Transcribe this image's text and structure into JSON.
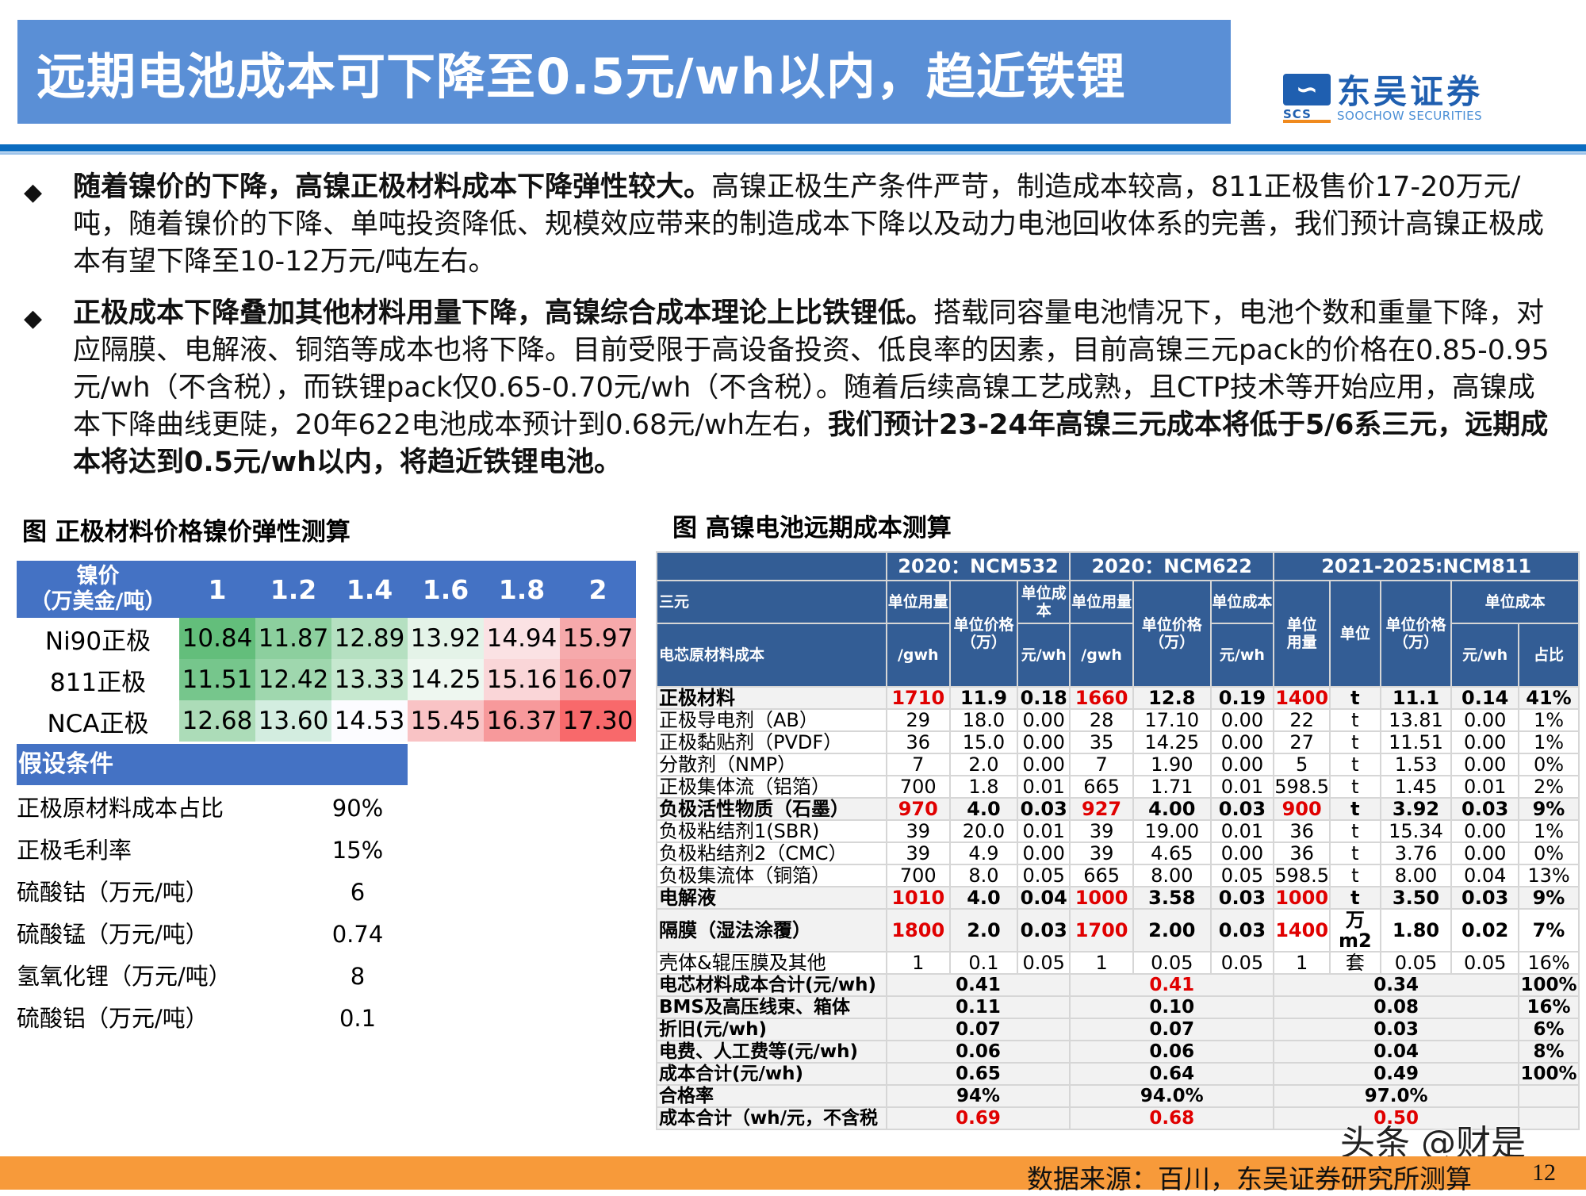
{
  "header": {
    "title": "远期电池成本可下降至0.5元/wh以内，趋近铁锂",
    "logo": {
      "mark": "SCS",
      "name_cn": "东吴证券",
      "name_en": "SOOCHOW SECURITIES"
    }
  },
  "bullets": [
    {
      "bold": "随着镍价的下降，高镍正极材料成本下降弹性较大。",
      "text": "高镍正极生产条件严苛，制造成本较高，811正极售价17-20万元/吨，随着镍价的下降、单吨投资降低、规模效应带来的制造成本下降以及动力电池回收体系的完善，我们预计高镍正极成本有望下降至10-12万元/吨左右。"
    },
    {
      "bold": "正极成本下降叠加其他材料用量下降，高镍综合成本理论上比铁锂低。",
      "text": "搭载同容量电池情况下，电池个数和重量下降，对应隔膜、电解液、铜箔等成本也将下降。目前受限于高设备投资、低良率的因素，目前高镍三元pack的价格在0.85-0.95元/wh（不含税），而铁锂pack仅0.65-0.70元/wh（不含税）。随着后续高镍工艺成熟，且CTP技术等开始应用，高镍成本下降曲线更陡，20年622电池成本预计到0.68元/wh左右，",
      "bold_tail": "我们预计23-24年高镍三元成本将低于5/6系三元，远期成本将达到0.5元/wh以内，将趋近铁锂电池。"
    }
  ],
  "left_figure": {
    "title": "图 正极材料价格镍价弹性测算",
    "header_label": "镍价（万美金/吨）",
    "header_label_l1": "镍价",
    "header_label_l2": "（万美金/吨）",
    "nickel_prices": [
      "1",
      "1.2",
      "1.4",
      "1.6",
      "1.8",
      "2"
    ],
    "rows": [
      {
        "label": "Ni90正极",
        "values": [
          "10.84",
          "11.87",
          "12.89",
          "13.92",
          "14.94",
          "15.97"
        ],
        "colors": [
          "#63be7b",
          "#8ccf9e",
          "#b5e0c1",
          "#e4f3e8",
          "#fbe2e4",
          "#f6a9ab"
        ]
      },
      {
        "label": "811正极",
        "values": [
          "11.51",
          "12.42",
          "13.33",
          "14.25",
          "15.16",
          "16.07"
        ],
        "colors": [
          "#76c68c",
          "#9fd7ae",
          "#c6e8cf",
          "#eef7f0",
          "#fad6d8",
          "#f59fa1"
        ]
      },
      {
        "label": "NCA正极",
        "values": [
          "12.68",
          "13.60",
          "14.53",
          "15.45",
          "16.37",
          "17.30"
        ],
        "colors": [
          "#acdcb8",
          "#d3ede0",
          "#fcfcff",
          "#f9c3c5",
          "#f7999b",
          "#f8696b"
        ]
      }
    ],
    "assumptions_title": "假设条件",
    "assumptions": [
      {
        "label": "正极原材料成本占比",
        "value": "90%"
      },
      {
        "label": "正极毛利率",
        "value": "15%"
      },
      {
        "label": "硫酸钴（万元/吨）",
        "value": "6"
      },
      {
        "label": "硫酸锰（万元/吨）",
        "value": "0.74"
      },
      {
        "label": "氢氧化锂（万元/吨）",
        "value": "8"
      },
      {
        "label": "硫酸铝（万元/吨）",
        "value": "0.1"
      }
    ]
  },
  "right_figure": {
    "title": "图 高镍电池远期成本测算",
    "groups": [
      "2020：NCM532",
      "2020：NCM622",
      "2021-2025:NCM811"
    ],
    "row_label_1": "三元",
    "row_label_2": "电芯原材料成本",
    "col_headers": {
      "unit_usage": "单位用量",
      "unit_price": "单位价格（万）",
      "unit_price_l1": "单位价格",
      "unit_price_l2": "（万）",
      "unit_cost": "单位成本",
      "unit_cost_532_l1": "单位成",
      "unit_cost_532_l2": "本",
      "per_gwh": "/gwh",
      "yuan_wh": "元/wh",
      "unit_usage_l1": "单位",
      "unit_usage_l2": "用量",
      "unit": "单位",
      "share": "占比"
    },
    "rows": [
      {
        "name": "正极材料",
        "bold": true,
        "v": [
          "1710",
          "11.9",
          "0.18",
          "1660",
          "12.8",
          "0.19",
          "1400",
          "t",
          "11.1",
          "0.14",
          "41%"
        ]
      },
      {
        "name": "正极导电剂（AB）",
        "bold": false,
        "v": [
          "29",
          "18.0",
          "0.00",
          "28",
          "17.10",
          "0.00",
          "22",
          "t",
          "13.81",
          "0.00",
          "1%"
        ]
      },
      {
        "name": "正极黏贴剂（PVDF）",
        "bold": false,
        "v": [
          "36",
          "15.0",
          "0.00",
          "35",
          "14.25",
          "0.00",
          "27",
          "t",
          "11.51",
          "0.00",
          "1%"
        ]
      },
      {
        "name": "分散剂（NMP）",
        "bold": false,
        "v": [
          "7",
          "2.0",
          "0.00",
          "7",
          "1.90",
          "0.00",
          "5",
          "t",
          "1.53",
          "0.00",
          "0%"
        ]
      },
      {
        "name": "正极集体流（铝箔）",
        "bold": false,
        "v": [
          "700",
          "1.8",
          "0.01",
          "665",
          "1.71",
          "0.01",
          "598.5",
          "t",
          "1.45",
          "0.01",
          "2%"
        ]
      },
      {
        "name": "负极活性物质（石墨）",
        "bold": true,
        "v": [
          "970",
          "4.0",
          "0.03",
          "927",
          "4.00",
          "0.03",
          "900",
          "t",
          "3.92",
          "0.03",
          "9%"
        ]
      },
      {
        "name": "负极粘结剂1(SBR)",
        "bold": false,
        "v": [
          "39",
          "20.0",
          "0.01",
          "39",
          "19.00",
          "0.01",
          "36",
          "t",
          "15.34",
          "0.00",
          "1%"
        ]
      },
      {
        "name": "负极粘结剂2（CMC）",
        "bold": false,
        "v": [
          "39",
          "4.9",
          "0.00",
          "39",
          "4.65",
          "0.00",
          "36",
          "t",
          "3.76",
          "0.00",
          "0%"
        ]
      },
      {
        "name": "负极集流体（铜箔）",
        "bold": false,
        "v": [
          "700",
          "8.0",
          "0.05",
          "665",
          "8.00",
          "0.05",
          "598.5",
          "t",
          "8.00",
          "0.04",
          "13%"
        ]
      },
      {
        "name": "电解液",
        "bold": true,
        "v": [
          "1010",
          "4.0",
          "0.04",
          "1000",
          "3.58",
          "0.03",
          "1000",
          "t",
          "3.50",
          "0.03",
          "9%"
        ]
      },
      {
        "name": "隔膜（湿法涂覆）",
        "bold": true,
        "v": [
          "1800",
          "2.0",
          "0.03",
          "1700",
          "2.00",
          "0.03",
          "1400",
          "万m2",
          "1.80",
          "0.02",
          "7%"
        ]
      },
      {
        "name": "壳体&辊压膜及其他",
        "bold": false,
        "v": [
          "1",
          "0.1",
          "0.05",
          "1",
          "0.05",
          "0.05",
          "1",
          "套",
          "0.05",
          "0.05",
          "16%"
        ]
      }
    ],
    "summary_rows": [
      {
        "name": "电芯材料成本合计(元/wh)",
        "v": [
          "0.41",
          "0.41",
          "0.34",
          "100%"
        ],
        "red": [
          false,
          true,
          false,
          false
        ]
      },
      {
        "name": "BMS及高压线束、箱体",
        "v": [
          "0.11",
          "0.10",
          "0.08",
          "16%"
        ],
        "red": [
          false,
          false,
          false,
          false
        ]
      },
      {
        "name": "折旧(元/wh)",
        "v": [
          "0.07",
          "0.07",
          "0.03",
          "6%"
        ],
        "red": [
          false,
          false,
          false,
          false
        ]
      },
      {
        "name": "电费、人工费等(元/wh)",
        "v": [
          "0.06",
          "0.06",
          "0.04",
          "8%"
        ],
        "red": [
          false,
          false,
          false,
          false
        ]
      },
      {
        "name": "成本合计(元/wh)",
        "v": [
          "0.65",
          "0.64",
          "0.49",
          "100%"
        ],
        "red": [
          false,
          false,
          false,
          false
        ]
      },
      {
        "name": "合格率",
        "v": [
          "94%",
          "94.0%",
          "97.0%",
          ""
        ],
        "red": [
          false,
          false,
          false,
          false
        ]
      },
      {
        "name": "成本合计（wh/元，不含税",
        "v": [
          "0.69",
          "0.68",
          "0.50",
          ""
        ],
        "red": [
          true,
          true,
          true,
          false
        ]
      }
    ]
  },
  "watermark": "头条 @财是",
  "footer": {
    "source": "数据来源：百川，东吴证券研究所测算",
    "page": "12"
  }
}
